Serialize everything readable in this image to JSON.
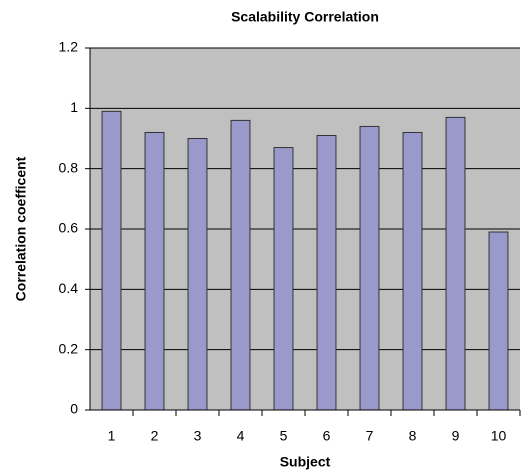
{
  "chart_data": {
    "type": "bar",
    "title": "Scalability Correlation",
    "x_label": "Subject",
    "y_label": "Correlation coefficent",
    "categories": [
      "1",
      "2",
      "3",
      "4",
      "5",
      "6",
      "7",
      "8",
      "9",
      "10"
    ],
    "values": [
      0.99,
      0.92,
      0.9,
      0.96,
      0.87,
      0.91,
      0.94,
      0.92,
      0.97,
      0.59
    ],
    "color": "#9999cc",
    "ylim": [
      0,
      1.2
    ],
    "yticks": [
      0,
      0.2,
      0.4,
      0.6,
      0.8,
      1,
      1.2
    ],
    "grid": true
  }
}
